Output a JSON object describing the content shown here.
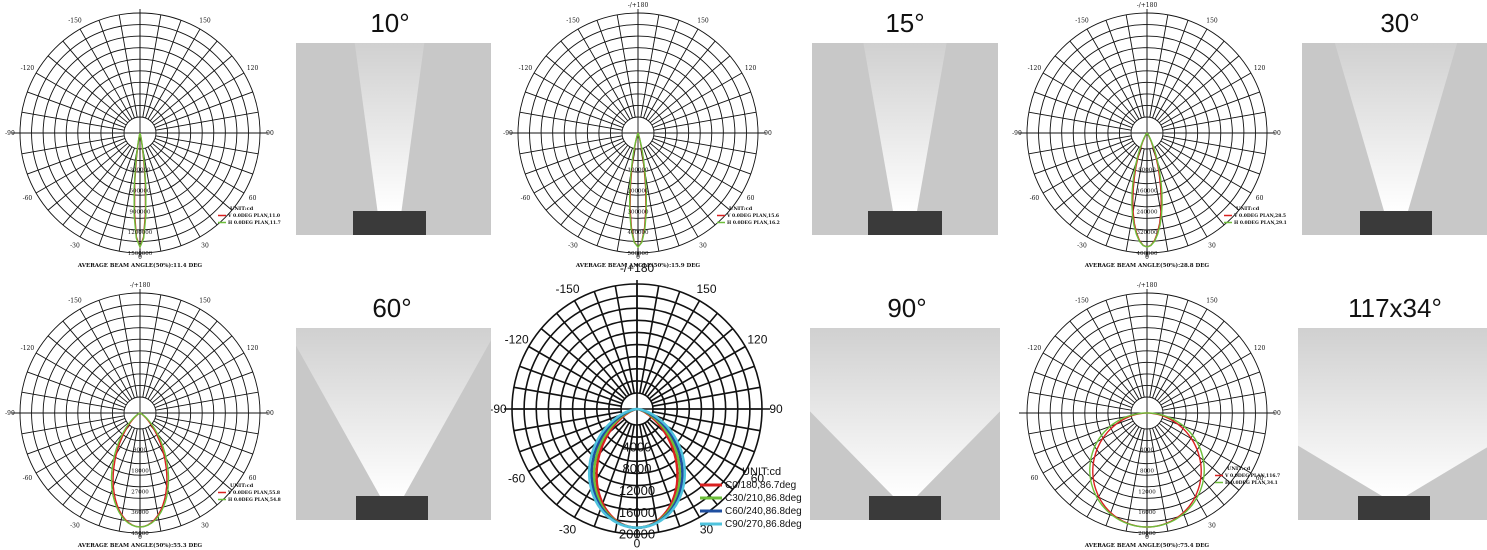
{
  "panels": [
    {
      "title": "10°",
      "top_label": "",
      "angle_labels": {
        "l150": "-150",
        "r150": "150",
        "l120": "-120",
        "r120": "120",
        "l90": "-90",
        "r90": "90",
        "l60": "-60",
        "r60": "60",
        "l30": "-30",
        "r30": "30",
        "bottom": "0"
      },
      "intensity_labels": [
        "300000",
        "600000",
        "900000",
        "1200000",
        "1500000"
      ],
      "unit": "UNIT:cd",
      "legend": [
        {
          "text": "V 0.0DEG PLAN,11.0",
          "color": "#d92020"
        },
        {
          "text": "H 0.0DEG PLAN,11.7",
          "color": "#6cbf3a"
        }
      ],
      "footer": "AVERAGE BEAM ANGLE(50%):11.4 DEG",
      "beam_half_angle_deg": 5.7
    },
    {
      "title": "15°",
      "top_label": "-/+180",
      "angle_labels": {
        "l150": "-150",
        "r150": "150",
        "l120": "-120",
        "r120": "120",
        "l90": "-90",
        "r90": "90",
        "l60": "-60",
        "r60": "60",
        "l30": "-30",
        "r30": "30",
        "bottom": "0"
      },
      "intensity_labels": [
        "100000",
        "200000",
        "300000",
        "400000",
        "500000"
      ],
      "unit": "UNIT:cd",
      "legend": [
        {
          "text": "V 0.0DEG PLAN,15.6",
          "color": "#d92020"
        },
        {
          "text": "H 0.0DEG PLAN,16.2",
          "color": "#6cbf3a"
        }
      ],
      "footer": "AVERAGE BEAM ANGLE(50%):15.9 DEG",
      "beam_half_angle_deg": 8
    },
    {
      "title": "30°",
      "top_label": "-/+180",
      "angle_labels": {
        "l150": "-150",
        "r150": "150",
        "l120": "-120",
        "r120": "120",
        "l90": "-90",
        "r90": "90",
        "l60": "-60",
        "r60": "60",
        "l30": "-30",
        "r30": "30",
        "bottom": "0"
      },
      "intensity_labels": [
        "80000",
        "160000",
        "240000",
        "320000",
        "400000"
      ],
      "unit": "UNIT:cd",
      "legend": [
        {
          "text": "V 0.0DEG PLAN,28.5",
          "color": "#d92020"
        },
        {
          "text": "H 0.0DEG PLAN,29.1",
          "color": "#6cbf3a"
        }
      ],
      "footer": "AVERAGE BEAM ANGLE(50%):28.8 DEG",
      "beam_half_angle_deg": 14.4
    },
    {
      "title": "60°",
      "top_label": "-/+180",
      "angle_labels": {
        "l150": "-150",
        "r150": "150",
        "l120": "-120",
        "r120": "120",
        "l90": "-90",
        "r90": "90",
        "l60": "-60",
        "r60": "60",
        "l30": "-30",
        "r30": "30",
        "bottom": "0"
      },
      "intensity_labels": [
        "9000",
        "18000",
        "27000",
        "36000",
        "45000"
      ],
      "unit": "UNIT:cd",
      "legend": [
        {
          "text": "V 0.0DEG PLAN,55.8",
          "color": "#d92020"
        },
        {
          "text": "H 0.0DEG PLAN,54.8",
          "color": "#6cbf3a"
        }
      ],
      "footer": "AVERAGE BEAM ANGLE(50%):55.3 DEG",
      "beam_half_angle_deg": 27.6
    },
    {
      "title": "90°",
      "top_label": "-/+180",
      "angle_labels": {
        "l150": "-150",
        "r150": "150",
        "l120": "-120",
        "r120": "120",
        "l90": "-90",
        "r90": "90",
        "l60": "-60",
        "r60": "60",
        "l30": "-30",
        "r30": "30",
        "bottom": "0"
      },
      "intensity_labels": [
        "4000",
        "8000",
        "12000",
        "16000",
        "20000"
      ],
      "unit": "UNIT:cd",
      "legend": [
        {
          "text": "C0/180,86.7deg",
          "color": "#d92020"
        },
        {
          "text": "C30/210,86.8deg",
          "color": "#6cbf3a"
        },
        {
          "text": "C60/240,86.8deg",
          "color": "#1f4fa0"
        },
        {
          "text": "C90/270,86.8deg",
          "color": "#4fc3dd"
        }
      ],
      "footer": "AVERAGE BEAM ANGLE(50%):86.8 DEG",
      "beam_half_angle_deg": 43.4
    },
    {
      "title": "117x34°",
      "top_label": "-/+180",
      "angle_labels": {
        "l150": "-150",
        "r150": "150",
        "l120": "-120",
        "r120": "120",
        "l90": "",
        "r90": "90",
        "l60": "60",
        "r60": "60",
        "l30": "",
        "r30": "30",
        "bottom": "0"
      },
      "intensity_labels": [
        "4000",
        "8000",
        "12000",
        "16000",
        "20000"
      ],
      "unit": "UNIT:cd",
      "legend": [
        {
          "text": "V 0.0DEG PLAN,116.7",
          "color": "#d92020"
        },
        {
          "text": "H 0.0DEG PLAN,34.1",
          "color": "#6cbf3a"
        }
      ],
      "footer": "AVERAGE BEAM ANGLE(50%):75.4 DEG",
      "beam_half_angle_deg": 58.5
    }
  ]
}
